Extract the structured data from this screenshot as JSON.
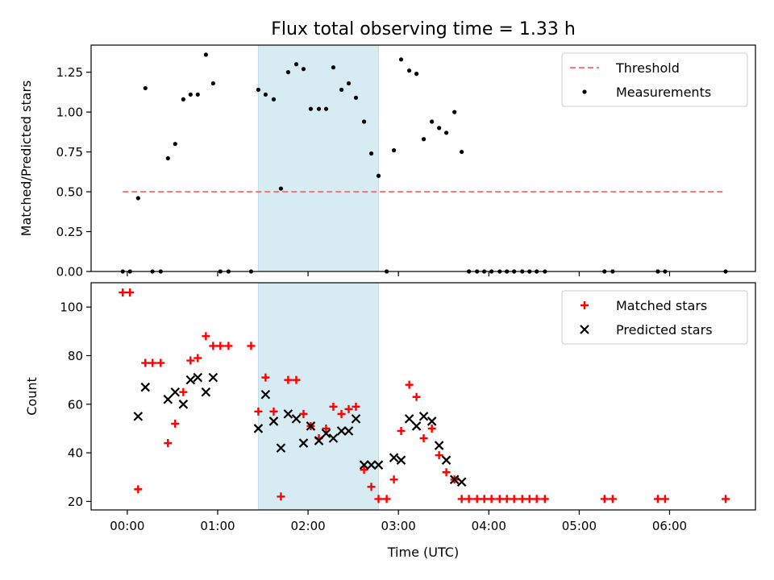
{
  "chart_data": [
    {
      "type": "scatter",
      "title": "Flux total observing time = 1.33 h",
      "ylabel": "Matched/Predicted stars",
      "xlabel": "",
      "xlim": [
        -0.4,
        6.95
      ],
      "ylim": [
        0,
        1.42
      ],
      "yticks": [
        0.0,
        0.25,
        0.5,
        0.75,
        1.0,
        1.25
      ],
      "ytick_labels": [
        "0.00",
        "0.25",
        "0.50",
        "0.75",
        "1.00",
        "1.25"
      ],
      "xticks": [
        0,
        1,
        2,
        3,
        4,
        5,
        6
      ],
      "shaded_span": {
        "x": [
          1.45,
          2.78
        ],
        "color": "#add8e6"
      },
      "legend": {
        "position": "top-right",
        "entries": [
          "Threshold",
          "Measurements"
        ]
      },
      "series": [
        {
          "name": "Threshold",
          "style": "dashed-line",
          "color": "#ff7777",
          "x": [
            -0.05,
            6.62
          ],
          "y": [
            0.5,
            0.5
          ]
        },
        {
          "name": "Measurements",
          "style": "dot",
          "color": "#000000",
          "x": [
            -0.05,
            0.03,
            0.12,
            0.2,
            0.28,
            0.37,
            0.45,
            0.53,
            0.62,
            0.7,
            0.78,
            0.87,
            0.95,
            1.03,
            1.12,
            1.37,
            1.45,
            1.53,
            1.62,
            1.7,
            1.78,
            1.87,
            1.95,
            2.03,
            2.12,
            2.2,
            2.28,
            2.37,
            2.45,
            2.53,
            2.62,
            2.7,
            2.78,
            2.87,
            2.95,
            3.03,
            3.12,
            3.2,
            3.28,
            3.37,
            3.45,
            3.53,
            3.62,
            3.7,
            3.78,
            3.87,
            3.95,
            4.03,
            4.12,
            4.2,
            4.28,
            4.37,
            4.45,
            4.53,
            4.62,
            5.28,
            5.37,
            5.87,
            5.95,
            6.62
          ],
          "y": [
            0,
            0,
            0.46,
            1.15,
            0,
            0,
            0.71,
            0.8,
            1.08,
            1.11,
            1.11,
            1.36,
            1.18,
            0,
            0,
            0,
            1.14,
            1.11,
            1.08,
            0.52,
            1.25,
            1.3,
            1.27,
            1.02,
            1.02,
            1.02,
            1.28,
            1.14,
            1.18,
            1.09,
            0.94,
            0.74,
            0.6,
            0,
            0.76,
            1.33,
            1.26,
            1.24,
            0.83,
            0.94,
            0.9,
            0.87,
            1.0,
            0.75,
            0,
            0,
            0,
            0,
            0,
            0,
            0,
            0,
            0,
            0,
            0,
            0,
            0,
            0,
            0,
            0
          ]
        }
      ]
    },
    {
      "type": "scatter",
      "ylabel": "Count",
      "xlabel": "Time (UTC)",
      "xlim": [
        -0.4,
        6.95
      ],
      "ylim": [
        16.5,
        110
      ],
      "yticks": [
        20,
        40,
        60,
        80,
        100
      ],
      "ytick_labels": [
        "20",
        "40",
        "60",
        "80",
        "100"
      ],
      "xticks": [
        0,
        1,
        2,
        3,
        4,
        5,
        6
      ],
      "xtick_labels": [
        "00:00",
        "01:00",
        "02:00",
        "03:00",
        "04:00",
        "05:00",
        "06:00"
      ],
      "shaded_span": {
        "x": [
          1.45,
          2.78
        ],
        "color": "#add8e6"
      },
      "legend": {
        "position": "top-right",
        "entries": [
          "Matched stars",
          "Predicted stars"
        ]
      },
      "series": [
        {
          "name": "Matched stars",
          "style": "plus",
          "color": "#ff0000",
          "x": [
            -0.05,
            0.03,
            0.12,
            0.2,
            0.28,
            0.37,
            0.45,
            0.53,
            0.62,
            0.7,
            0.78,
            0.87,
            0.95,
            1.03,
            1.12,
            1.37,
            1.45,
            1.53,
            1.62,
            1.7,
            1.78,
            1.87,
            1.95,
            2.03,
            2.12,
            2.2,
            2.28,
            2.37,
            2.45,
            2.53,
            2.62,
            2.7,
            2.78,
            2.87,
            2.95,
            3.03,
            3.12,
            3.2,
            3.28,
            3.37,
            3.45,
            3.53,
            3.62,
            3.7,
            3.78,
            3.87,
            3.95,
            4.03,
            4.12,
            4.2,
            4.28,
            4.37,
            4.45,
            4.53,
            4.62,
            5.28,
            5.37,
            5.87,
            5.95,
            6.62
          ],
          "y": [
            106,
            106,
            25,
            77,
            77,
            77,
            44,
            52,
            65,
            78,
            79,
            88,
            84,
            84,
            84,
            84,
            57,
            71,
            57,
            22,
            70,
            70,
            56,
            51,
            46,
            50,
            59,
            56,
            58,
            59,
            33,
            26,
            21,
            21,
            29,
            49,
            68,
            63,
            46,
            50,
            39,
            32,
            29,
            21,
            21,
            21,
            21,
            21,
            21,
            21,
            21,
            21,
            21,
            21,
            21,
            21,
            21,
            21,
            21,
            21
          ]
        },
        {
          "name": "Predicted stars",
          "style": "x",
          "color": "#000000",
          "x": [
            0.12,
            0.2,
            0.45,
            0.53,
            0.62,
            0.7,
            0.78,
            0.87,
            0.95,
            1.45,
            1.53,
            1.62,
            1.7,
            1.78,
            1.87,
            1.95,
            2.03,
            2.12,
            2.2,
            2.28,
            2.37,
            2.45,
            2.53,
            2.62,
            2.7,
            2.78,
            2.95,
            3.03,
            3.12,
            3.2,
            3.28,
            3.37,
            3.45,
            3.53,
            3.62,
            3.7
          ],
          "y": [
            55,
            67,
            62,
            65,
            60,
            70,
            71,
            65,
            71,
            50,
            64,
            53,
            42,
            56,
            54,
            44,
            51,
            45,
            48,
            46,
            49,
            49,
            54,
            35,
            35,
            35,
            38,
            37,
            54,
            51,
            55,
            53,
            43,
            37,
            29,
            28
          ]
        }
      ]
    }
  ]
}
